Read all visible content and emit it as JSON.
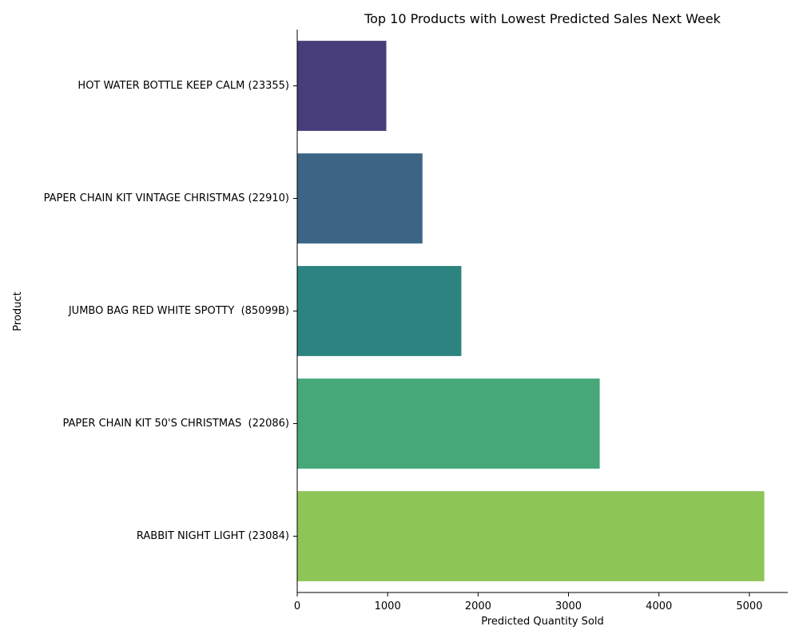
{
  "chart_data": {
    "type": "bar",
    "orientation": "horizontal",
    "title": "Top 10 Products with Lowest Predicted Sales Next Week",
    "xlabel": "Predicted Quantity Sold",
    "ylabel": "Product",
    "xlim": [
      0,
      5425
    ],
    "xticks": [
      0,
      1000,
      2000,
      3000,
      4000,
      5000
    ],
    "xtick_labels": [
      "0",
      "1000",
      "2000",
      "3000",
      "4000",
      "5000"
    ],
    "grid": false,
    "categories": [
      "HOT WATER BOTTLE KEEP CALM (23355)",
      "PAPER CHAIN KIT VINTAGE CHRISTMAS (22910)",
      "JUMBO BAG RED WHITE SPOTTY  (85099B)",
      "PAPER CHAIN KIT 50'S CHRISTMAS  (22086)",
      "RABBIT NIGHT LIGHT (23084)"
    ],
    "values": [
      985,
      1385,
      1815,
      3345,
      5165
    ],
    "colors": [
      "#483d7b",
      "#3c6585",
      "#2c8480",
      "#46a878",
      "#8ec557"
    ]
  }
}
